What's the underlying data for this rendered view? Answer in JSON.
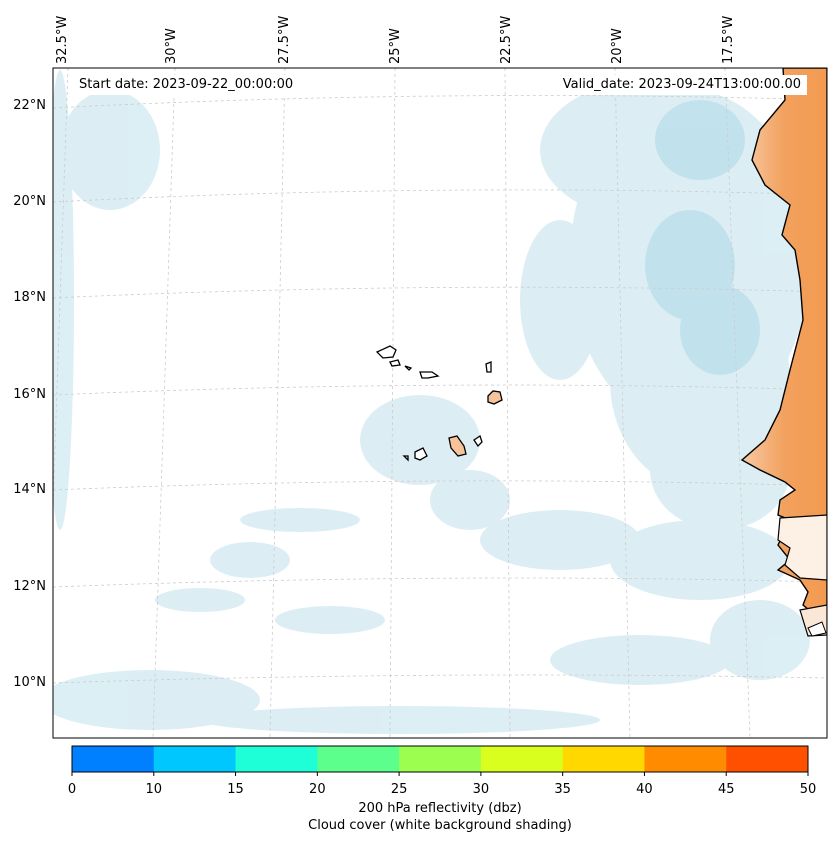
{
  "info": {
    "start_date": "Start date: 2023-09-22_00:00:00",
    "valid_date": "Valid_date: 2023-09-24T13:00:00.00"
  },
  "lat_labels": [
    "22°N",
    "20°N",
    "18°N",
    "16°N",
    "14°N",
    "12°N",
    "10°N"
  ],
  "lon_labels": [
    "32.5°W",
    "30°W",
    "27.5°W",
    "25°W",
    "22.5°W",
    "20°W",
    "17.5°W"
  ],
  "colorbar": {
    "ticks": [
      "0",
      "10",
      "15",
      "20",
      "25",
      "30",
      "35",
      "40",
      "45",
      "50"
    ],
    "colors": [
      "#0080ff",
      "#00c8ff",
      "#1effd8",
      "#5cff8c",
      "#9cff50",
      "#d8ff1e",
      "#ffd800",
      "#ff8c00",
      "#ff5000"
    ],
    "label": "200 hPa reflectivity (dbz)",
    "sublabel": "Cloud cover (white background shading)"
  },
  "colors": {
    "land": "#f2a15e",
    "cloud": "#cfe9f1",
    "frame": "#000000"
  }
}
